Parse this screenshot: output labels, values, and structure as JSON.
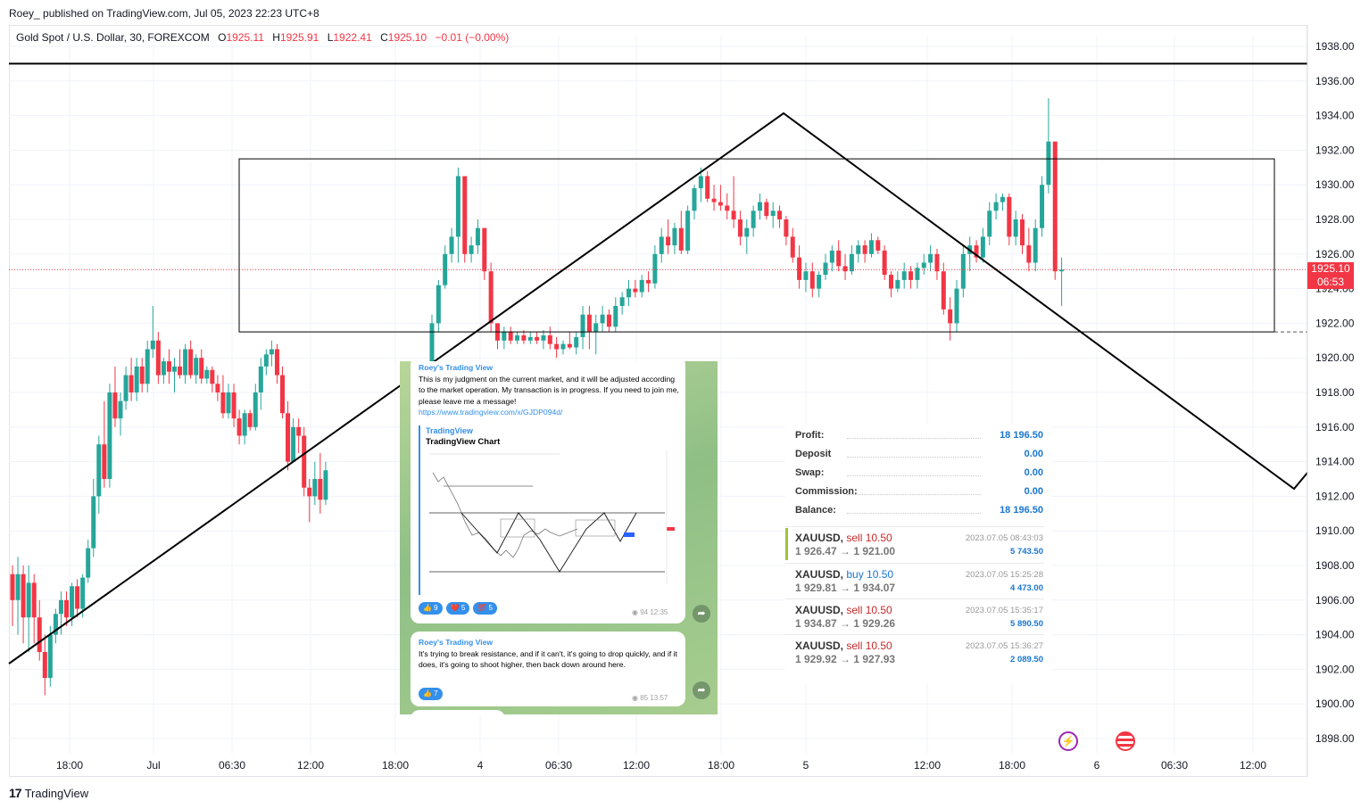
{
  "header": {
    "published": "Roey_ published on TradingView.com, Jul 05, 2023 22:23 UTC+8"
  },
  "symbol_bar": {
    "name": "Gold Spot / U.S. Dollar, 30, FOREXCOM",
    "o_label": "O",
    "o": "1925.11",
    "h_label": "H",
    "h": "1925.91",
    "l_label": "L",
    "l": "1922.41",
    "c_label": "C",
    "c": "1925.10",
    "change": "−0.01 (−0.00%)"
  },
  "price_badge": {
    "price": "1925.10",
    "countdown": "06:53"
  },
  "footer": {
    "brand": "TradingView",
    "logo": "17"
  },
  "colors": {
    "up": "#26a69a",
    "down": "#f23645",
    "line": "#000000",
    "grid": "#f0f3fa"
  },
  "chart_data": {
    "type": "candlestick",
    "title": "Gold Spot / U.S. Dollar, 30, FOREXCOM",
    "y_ticks": [
      "1938.00",
      "1936.00",
      "1934.00",
      "1932.00",
      "1930.00",
      "1928.00",
      "1926.00",
      "1924.00",
      "1922.00",
      "1920.00",
      "1918.00",
      "1916.00",
      "1914.00",
      "1912.00",
      "1910.00",
      "1908.00",
      "1906.00",
      "1904.00",
      "1902.00",
      "1900.00",
      "1898.00"
    ],
    "x_ticks": [
      "18:00",
      "Jul",
      "06:30",
      "12:00",
      "18:00",
      "4",
      "06:30",
      "12:00",
      "18:00",
      "5",
      "12:00",
      "18:00",
      "6",
      "06:30",
      "12:00"
    ],
    "ylim": [
      1896.6,
      1939.8
    ],
    "last_price": 1925.1,
    "resistance_line": 1937.0,
    "box": {
      "high": 1931.5,
      "low": 1921.5
    },
    "ohlc": [
      [
        1907.5,
        1908.0,
        1904.5,
        1906.0
      ],
      [
        1906.0,
        1908.5,
        1904.0,
        1907.5
      ],
      [
        1907.5,
        1908.0,
        1903.5,
        1905.0
      ],
      [
        1905.0,
        1908.0,
        1903.0,
        1907.0
      ],
      [
        1907.0,
        1907.5,
        1903.5,
        1905.0
      ],
      [
        1905.0,
        1906.0,
        1902.5,
        1903.0
      ],
      [
        1903.0,
        1904.0,
        1900.5,
        1901.5
      ],
      [
        1901.5,
        1904.5,
        1901.0,
        1904.0
      ],
      [
        1904.0,
        1905.5,
        1903.5,
        1905.2
      ],
      [
        1905.2,
        1906.5,
        1904.0,
        1906.0
      ],
      [
        1906.0,
        1906.5,
        1904.5,
        1905.0
      ],
      [
        1905.0,
        1907.0,
        1904.5,
        1906.8
      ],
      [
        1906.8,
        1907.2,
        1905.0,
        1905.5
      ],
      [
        1905.5,
        1907.5,
        1905.0,
        1907.3
      ],
      [
        1907.3,
        1909.5,
        1907.0,
        1909.0
      ],
      [
        1909.0,
        1913.0,
        1908.5,
        1912.0
      ],
      [
        1912.0,
        1915.5,
        1911.0,
        1915.0
      ],
      [
        1915.0,
        1917.5,
        1912.5,
        1913.0
      ],
      [
        1913.0,
        1918.5,
        1912.5,
        1918.0
      ],
      [
        1918.0,
        1919.5,
        1916.0,
        1916.5
      ],
      [
        1916.5,
        1918.0,
        1915.5,
        1917.5
      ],
      [
        1917.5,
        1919.5,
        1917.0,
        1919.0
      ],
      [
        1919.0,
        1920.0,
        1917.5,
        1918.0
      ],
      [
        1918.0,
        1920.0,
        1917.5,
        1919.5
      ],
      [
        1919.5,
        1920.0,
        1918.0,
        1918.5
      ],
      [
        1918.5,
        1921.0,
        1918.0,
        1920.5
      ],
      [
        1920.5,
        1923.0,
        1920.0,
        1921.0
      ],
      [
        1921.0,
        1921.5,
        1918.5,
        1919.0
      ],
      [
        1919.0,
        1920.0,
        1918.5,
        1919.8
      ],
      [
        1919.8,
        1920.5,
        1918.5,
        1919.2
      ],
      [
        1919.2,
        1920.0,
        1918.0,
        1919.5
      ],
      [
        1919.5,
        1920.5,
        1918.8,
        1919.0
      ],
      [
        1919.0,
        1920.8,
        1918.5,
        1920.5
      ],
      [
        1920.5,
        1921.0,
        1918.8,
        1919.0
      ],
      [
        1919.0,
        1920.2,
        1918.5,
        1920.0
      ],
      [
        1920.0,
        1920.5,
        1918.5,
        1918.8
      ],
      [
        1918.8,
        1919.5,
        1918.5,
        1919.3
      ],
      [
        1919.3,
        1919.5,
        1918.0,
        1918.5
      ],
      [
        1918.5,
        1919.0,
        1917.5,
        1918.0
      ],
      [
        1918.0,
        1919.0,
        1916.5,
        1916.8
      ],
      [
        1916.8,
        1918.5,
        1916.5,
        1918.0
      ],
      [
        1918.0,
        1918.5,
        1916.0,
        1916.5
      ],
      [
        1916.5,
        1917.0,
        1915.0,
        1915.5
      ],
      [
        1915.5,
        1917.0,
        1915.0,
        1916.8
      ],
      [
        1916.8,
        1917.0,
        1915.8,
        1916.0
      ],
      [
        1916.0,
        1918.5,
        1915.8,
        1918.0
      ],
      [
        1918.0,
        1920.0,
        1917.0,
        1919.5
      ],
      [
        1919.5,
        1920.5,
        1919.0,
        1920.2
      ],
      [
        1920.2,
        1921.0,
        1919.5,
        1920.5
      ],
      [
        1920.5,
        1920.8,
        1918.5,
        1919.0
      ],
      [
        1919.0,
        1919.5,
        1916.5,
        1916.8
      ],
      [
        1916.8,
        1917.5,
        1913.5,
        1914.0
      ],
      [
        1914.0,
        1916.5,
        1914.0,
        1916.0
      ],
      [
        1916.0,
        1916.5,
        1914.5,
        1915.5
      ],
      [
        1915.5,
        1916.0,
        1912.0,
        1912.5
      ],
      [
        1912.5,
        1913.0,
        1910.5,
        1912.0
      ],
      [
        1912.0,
        1914.0,
        1911.5,
        1913.0
      ],
      [
        1913.0,
        1914.5,
        1911.0,
        1911.8
      ],
      [
        1911.8,
        1914.0,
        1911.5,
        1913.5
      ]
    ],
    "ohlc2": [
      [
        1918.0,
        1922.5,
        1917.5,
        1922.0
      ],
      [
        1922.0,
        1924.5,
        1921.5,
        1924.2
      ],
      [
        1924.2,
        1926.5,
        1924.0,
        1926.0
      ],
      [
        1926.0,
        1927.5,
        1925.5,
        1927.0
      ],
      [
        1927.0,
        1931.0,
        1925.5,
        1930.5
      ],
      [
        1930.5,
        1930.5,
        1925.5,
        1926.0
      ],
      [
        1926.0,
        1927.0,
        1925.5,
        1926.5
      ],
      [
        1926.5,
        1928.0,
        1926.0,
        1927.5
      ],
      [
        1927.5,
        1927.5,
        1924.5,
        1925.0
      ],
      [
        1925.0,
        1925.5,
        1921.5,
        1922.0
      ],
      [
        1922.0,
        1922.0,
        1920.5,
        1921.0
      ],
      [
        1921.0,
        1921.8,
        1920.5,
        1921.5
      ],
      [
        1921.5,
        1921.8,
        1920.8,
        1921.0
      ],
      [
        1921.0,
        1921.5,
        1920.8,
        1921.3
      ],
      [
        1921.3,
        1921.6,
        1920.8,
        1921.0
      ],
      [
        1921.0,
        1921.5,
        1920.8,
        1921.2
      ],
      [
        1921.2,
        1921.5,
        1920.8,
        1921.0
      ],
      [
        1921.0,
        1921.6,
        1920.5,
        1921.3
      ],
      [
        1921.3,
        1921.8,
        1920.5,
        1920.8
      ],
      [
        1920.8,
        1921.2,
        1920.0,
        1920.5
      ],
      [
        1920.5,
        1921.0,
        1920.2,
        1920.8
      ],
      [
        1920.8,
        1921.5,
        1920.5,
        1920.6
      ],
      [
        1920.6,
        1921.5,
        1920.2,
        1921.2
      ],
      [
        1921.2,
        1923.0,
        1920.5,
        1922.5
      ],
      [
        1922.5,
        1923.0,
        1920.5,
        1921.5
      ],
      [
        1921.5,
        1922.5,
        1920.2,
        1922.0
      ],
      [
        1922.0,
        1923.0,
        1921.5,
        1922.5
      ],
      [
        1922.5,
        1922.8,
        1921.5,
        1921.8
      ],
      [
        1921.8,
        1923.5,
        1921.5,
        1923.0
      ],
      [
        1923.0,
        1923.8,
        1922.5,
        1923.5
      ],
      [
        1923.5,
        1924.5,
        1923.0,
        1924.0
      ],
      [
        1924.0,
        1924.5,
        1923.5,
        1923.8
      ],
      [
        1923.8,
        1924.8,
        1923.5,
        1924.5
      ],
      [
        1924.5,
        1925.0,
        1923.8,
        1924.3
      ],
      [
        1924.3,
        1926.5,
        1924.0,
        1926.0
      ],
      [
        1926.0,
        1927.5,
        1925.5,
        1927.0
      ],
      [
        1927.0,
        1928.0,
        1926.0,
        1926.5
      ],
      [
        1926.5,
        1927.8,
        1926.0,
        1927.5
      ],
      [
        1927.5,
        1928.5,
        1926.0,
        1926.2
      ],
      [
        1926.2,
        1928.8,
        1926.0,
        1928.5
      ],
      [
        1928.5,
        1930.0,
        1928.0,
        1929.8
      ],
      [
        1929.8,
        1931.0,
        1929.0,
        1930.5
      ],
      [
        1930.5,
        1930.8,
        1929.0,
        1929.2
      ],
      [
        1929.2,
        1930.0,
        1928.5,
        1929.0
      ],
      [
        1929.0,
        1930.0,
        1928.5,
        1928.8
      ],
      [
        1928.8,
        1929.5,
        1928.0,
        1928.5
      ],
      [
        1928.5,
        1930.5,
        1927.5,
        1928.0
      ],
      [
        1928.0,
        1928.5,
        1926.5,
        1927.0
      ],
      [
        1927.0,
        1928.0,
        1926.0,
        1927.5
      ],
      [
        1927.5,
        1928.8,
        1927.0,
        1928.5
      ],
      [
        1928.5,
        1929.5,
        1928.0,
        1929.0
      ],
      [
        1929.0,
        1929.2,
        1928.0,
        1928.2
      ],
      [
        1928.2,
        1929.0,
        1927.5,
        1928.5
      ],
      [
        1928.5,
        1928.8,
        1927.5,
        1928.0
      ],
      [
        1928.0,
        1928.2,
        1926.5,
        1927.0
      ],
      [
        1927.0,
        1927.5,
        1925.5,
        1925.8
      ],
      [
        1925.8,
        1926.5,
        1924.0,
        1924.5
      ],
      [
        1924.5,
        1925.5,
        1923.8,
        1925.0
      ],
      [
        1925.0,
        1925.5,
        1923.5,
        1924.0
      ],
      [
        1924.0,
        1925.0,
        1923.5,
        1924.8
      ],
      [
        1924.8,
        1926.0,
        1924.5,
        1925.5
      ],
      [
        1925.5,
        1926.5,
        1925.0,
        1926.2
      ],
      [
        1926.2,
        1926.8,
        1925.0,
        1925.3
      ],
      [
        1925.3,
        1926.0,
        1924.5,
        1925.0
      ],
      [
        1925.0,
        1926.5,
        1924.8,
        1926.0
      ],
      [
        1926.0,
        1926.8,
        1925.5,
        1926.5
      ],
      [
        1926.5,
        1926.8,
        1925.5,
        1926.0
      ],
      [
        1926.0,
        1927.2,
        1925.8,
        1926.8
      ],
      [
        1926.8,
        1927.0,
        1926.0,
        1926.2
      ],
      [
        1926.2,
        1926.5,
        1924.5,
        1924.8
      ],
      [
        1924.8,
        1925.0,
        1923.5,
        1924.0
      ],
      [
        1924.0,
        1925.0,
        1923.8,
        1924.5
      ],
      [
        1924.5,
        1925.5,
        1924.0,
        1925.0
      ],
      [
        1925.0,
        1925.3,
        1924.0,
        1924.5
      ],
      [
        1924.5,
        1925.5,
        1924.0,
        1925.2
      ],
      [
        1925.2,
        1926.0,
        1924.8,
        1925.5
      ],
      [
        1925.5,
        1926.5,
        1925.0,
        1926.0
      ],
      [
        1926.0,
        1926.3,
        1924.5,
        1925.0
      ],
      [
        1925.0,
        1925.5,
        1922.5,
        1922.8
      ],
      [
        1922.8,
        1923.5,
        1921.0,
        1922.0
      ],
      [
        1922.0,
        1924.5,
        1921.5,
        1924.0
      ],
      [
        1924.0,
        1926.5,
        1923.5,
        1926.0
      ],
      [
        1926.0,
        1927.0,
        1925.0,
        1926.5
      ],
      [
        1926.5,
        1926.8,
        1925.5,
        1925.8
      ],
      [
        1925.8,
        1927.5,
        1925.5,
        1927.0
      ],
      [
        1927.0,
        1929.0,
        1926.5,
        1928.5
      ],
      [
        1928.5,
        1929.5,
        1928.0,
        1929.0
      ],
      [
        1929.0,
        1929.5,
        1928.5,
        1929.3
      ],
      [
        1929.3,
        1929.5,
        1926.5,
        1927.0
      ],
      [
        1927.0,
        1928.5,
        1926.5,
        1928.0
      ],
      [
        1928.0,
        1928.3,
        1926.0,
        1926.5
      ],
      [
        1926.5,
        1927.5,
        1925.0,
        1925.5
      ],
      [
        1925.5,
        1928.0,
        1925.0,
        1927.5
      ],
      [
        1927.5,
        1930.5,
        1927.0,
        1930.0
      ],
      [
        1930.0,
        1935.0,
        1929.5,
        1932.5
      ],
      [
        1932.5,
        1932.5,
        1924.5,
        1925.0
      ],
      [
        1925.0,
        1925.8,
        1923.0,
        1925.1
      ]
    ]
  },
  "telegram": {
    "msg1": {
      "author": "Roey's Trading View",
      "text": "This is my judgment on the current market, and it will be adjusted according to the market operation. My transaction is in progress. If you need to join me, please leave me a message!",
      "link": "https://www.tradingview.com/x/GJDP094d/",
      "preview_site": "TradingView",
      "preview_title": "TradingView Chart",
      "reactions": [
        "👍 9",
        "❤️ 5",
        "💯 5"
      ],
      "views": "94",
      "time": "12:35"
    },
    "msg2": {
      "author": "Roey's Trading View",
      "text": "It's trying to break resistance, and if it can't, it's going to drop quickly, and if it does, it's going to shoot higher, then back down around here.",
      "reactions": [
        "👍 7"
      ],
      "views": "85",
      "time": "13:57"
    }
  },
  "trade_panel": {
    "summary": [
      {
        "label": "Profit:",
        "value": "18 196.50"
      },
      {
        "label": "Deposit",
        "value": "0.00"
      },
      {
        "label": "Swap:",
        "value": "0.00"
      },
      {
        "label": "Commission:",
        "value": "0.00"
      },
      {
        "label": "Balance:",
        "value": "18 196.50"
      }
    ],
    "trades": [
      {
        "symbol": "XAUUSD,",
        "side": "sell 10.50",
        "prices": "1 926.47 → 1 921.00",
        "time": "2023.07.05 08:43:03",
        "profit": "5 743.50"
      },
      {
        "symbol": "XAUUSD,",
        "side": "buy 10.50",
        "prices": "1 929.81 → 1 934.07",
        "time": "2023.07.05 15:25:28",
        "profit": "4 473.00"
      },
      {
        "symbol": "XAUUSD,",
        "side": "sell 10.50",
        "prices": "1 934.87 → 1 929.26",
        "time": "2023.07.05 15:35:17",
        "profit": "5 890.50"
      },
      {
        "symbol": "XAUUSD,",
        "side": "sell 10.50",
        "prices": "1 929.92 → 1 927.93",
        "time": "2023.07.05 15:36:27",
        "profit": "2 089.50"
      }
    ]
  }
}
